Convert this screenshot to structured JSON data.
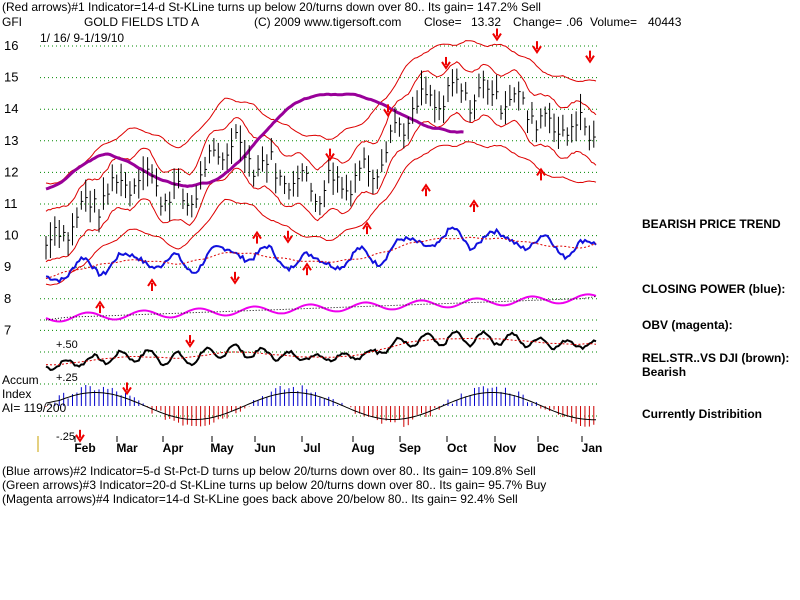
{
  "header": {
    "line1": "(Red arrows)#1 Indicator=14-d St-KLine turns up below 20/turns down over 80.. Its gain= 147.2% Sell",
    "symbol": "GFI",
    "company": "GOLD FIELDS LTD A",
    "copyright": "(C) 2009 www.tigersoft.com",
    "close_label": "Close=",
    "close_value": "13.32",
    "change_label": "Change=",
    "change_value": ".06",
    "volume_label": "Volume=",
    "volume_value": "40443",
    "date_range": "1/ 16/ 9-1/19/10"
  },
  "side_labels": {
    "bearish_trend": "BEARISH PRICE TREND",
    "closing_power": "CLOSING POWER (blue):",
    "obv": "OBV (magenta):",
    "rel_str": "REL.STR..VS DJI (brown):",
    "rel_str_value": "Bearish",
    "distribution": "Currently Distribition"
  },
  "accum": {
    "label1": "Accum",
    "label2": "Index",
    "ai": "AI= 119/200",
    "plus50": "+.50",
    "plus25": "+.25",
    "minus25": "-.25"
  },
  "footer": {
    "blue": "(Blue arrows)#2 Indicator=5-d St-Pct-D turns up below 20/turns down over 80.. Its gain= 109.8% Sell",
    "green": "(Green arrows)#3 Indicator=20-d St-KLine turns up below 20/turns down over 80.. Its gain= 95.7% Buy",
    "magenta": "(Magenta arrows)#4 Indicator=14-d St-KLine goes back above 20/below 80.. Its gain= 92.4% Sell"
  },
  "colors": {
    "price": "#000000",
    "bands": "#dd0000",
    "ma": "#990099",
    "closing_power": "#1111dd",
    "obv": "#ee00ee",
    "rel_str": "#000000",
    "grid": "#008800",
    "accum_pos": "#0000cc",
    "accum_neg": "#cc0000",
    "arrows": "#ee0000"
  },
  "chart_data": {
    "type": "line",
    "title": "GOLD FIELDS LTD A",
    "x_tick_labels": [
      "Feb",
      "Mar",
      "Apr",
      "May",
      "Jun",
      "Jul",
      "Aug",
      "Sep",
      "Oct",
      "Nov",
      "Dec",
      "Jan"
    ],
    "y_tick_labels": [
      "16",
      "15",
      "14",
      "13",
      "12",
      "11",
      "10",
      "9",
      "8",
      "7"
    ],
    "ylim": [
      6.3,
      16.3
    ],
    "grid": true,
    "series": [
      {
        "x": [
          "Jan",
          "Feb",
          "Mar",
          "Apr",
          "May",
          "Jun",
          "Jul",
          "Aug",
          "Sep",
          "Oct",
          "Nov",
          "Dec",
          "Jan"
        ],
        "values": [
          9.7,
          11.0,
          12.0,
          11.0,
          13.0,
          12.0,
          11.5,
          12.0,
          14.0,
          14.5,
          14.5,
          13.5,
          13.32
        ]
      }
    ],
    "sell_arrows_at": [
      2.5,
      4.0,
      5.5,
      7.5,
      8.8,
      11.4,
      12.8,
      14.3,
      15.2,
      14.8,
      14.5
    ],
    "buy_arrows_at": [
      8.8,
      9.5,
      11.0,
      10.0,
      11.3,
      12.5,
      12.0,
      13.0
    ]
  }
}
